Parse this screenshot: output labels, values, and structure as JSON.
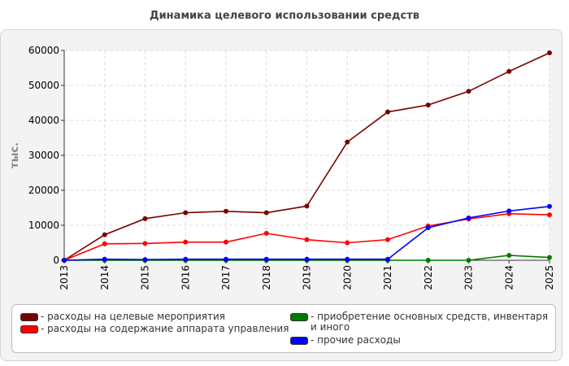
{
  "chart_data": {
    "type": "line",
    "title": "Динамика целевого использовании средств",
    "ylabel": "тыс.",
    "xlabel": "",
    "x": [
      "2013",
      "2014",
      "2015",
      "2016",
      "2017",
      "2018",
      "2019",
      "2020",
      "2021",
      "2022",
      "2023",
      "2024",
      "2025"
    ],
    "ylim": [
      0,
      60000
    ],
    "yticks": [
      "0",
      "10000",
      "20000",
      "30000",
      "40000",
      "50000",
      "60000"
    ],
    "grid": true,
    "legend": "bottom",
    "series": [
      {
        "name": "расходы на целевые мероприятия",
        "color": "#7a0000",
        "values": [
          0,
          7300,
          11900,
          13600,
          14000,
          13600,
          15500,
          33800,
          42400,
          44400,
          48300,
          54000,
          59300
        ]
      },
      {
        "name": "расходы на содержание аппарата управления",
        "color": "#ff0000",
        "values": [
          0,
          4700,
          4800,
          5200,
          5200,
          7700,
          5900,
          5000,
          5900,
          9800,
          11800,
          13300,
          13000
        ]
      },
      {
        "name": "приобретение основных средств, инвентаря и иного",
        "color": "#007a00",
        "values": [
          0,
          0,
          0,
          0,
          0,
          0,
          0,
          0,
          0,
          0,
          0,
          1400,
          800
        ]
      },
      {
        "name": "прочие расходы",
        "color": "#0000ff",
        "values": [
          0,
          300,
          200,
          300,
          300,
          300,
          300,
          300,
          300,
          9300,
          12100,
          14100,
          15400
        ]
      }
    ]
  }
}
